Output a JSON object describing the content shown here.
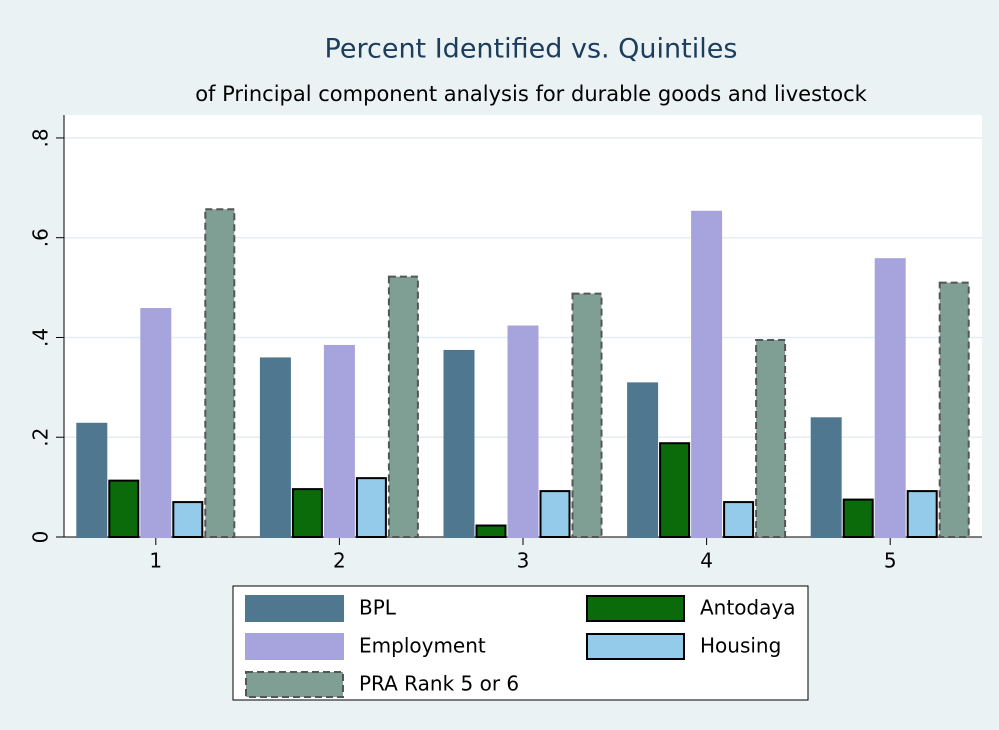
{
  "chart_data": {
    "type": "bar",
    "title": "Percent Identified vs. Quintiles",
    "subtitle": "of Principal component analysis for durable goods and livestock",
    "categories": [
      "1",
      "2",
      "3",
      "4",
      "5"
    ],
    "series": [
      {
        "name": "BPL",
        "color": "#4f7890",
        "edgecolor": "#4f7890",
        "values": [
          0.227,
          0.358,
          0.373,
          0.308,
          0.238
        ]
      },
      {
        "name": "Antodaya",
        "color": "#0b6b0b",
        "edgecolor": "#000000",
        "values": [
          0.113,
          0.096,
          0.023,
          0.188,
          0.075
        ]
      },
      {
        "name": "Employment",
        "color": "#a7a3dc",
        "edgecolor": "#a7a3dc",
        "values": [
          0.457,
          0.383,
          0.422,
          0.652,
          0.557
        ]
      },
      {
        "name": "Housing",
        "color": "#94cbea",
        "edgecolor": "#000000",
        "values": [
          0.07,
          0.118,
          0.092,
          0.07,
          0.092
        ]
      },
      {
        "name": "PRA Rank 5 or 6",
        "color": "#7f9e94",
        "edgecolor": "#555555",
        "linestyle": "dashed",
        "values": [
          0.657,
          0.522,
          0.488,
          0.395,
          0.51
        ]
      }
    ],
    "ylim": [
      0,
      0.846
    ],
    "yticks": [
      0,
      {
        "value": 0.2,
        "label": ".2"
      },
      {
        "value": 0.4,
        "label": ".4"
      },
      {
        "value": 0.6,
        "label": ".6"
      },
      {
        "value": 0.8,
        "label": ".8"
      }
    ],
    "grid": true,
    "legend": "bottom"
  }
}
